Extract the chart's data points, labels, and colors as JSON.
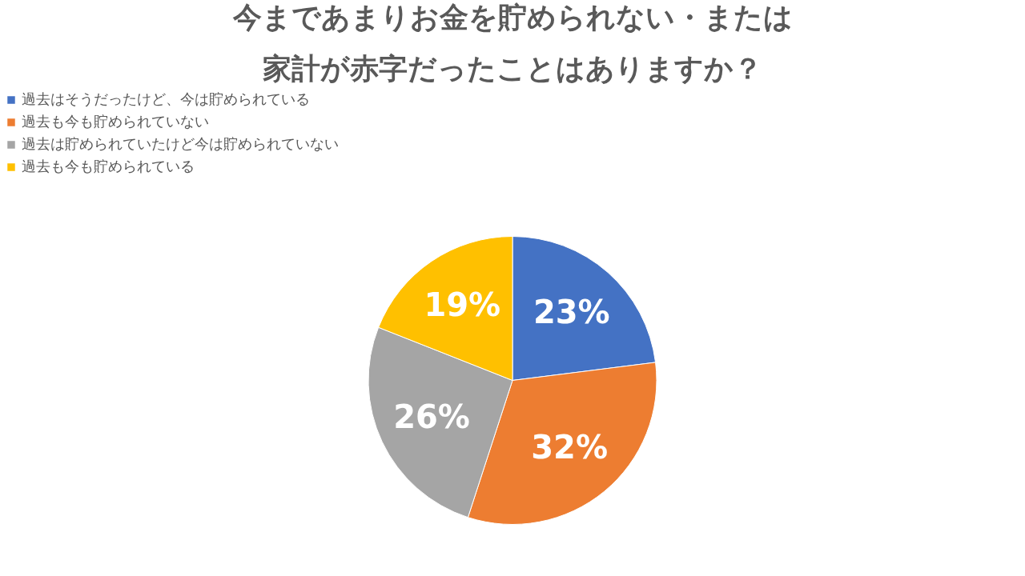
{
  "chart_data": {
    "type": "pie",
    "title": [
      "今まであまりお金を貯められない・または",
      "家計が赤字だったことはありますか？"
    ],
    "categories": [
      "過去はそうだったけど、今は貯められている",
      "過去も今も貯められていない",
      "過去は貯められていたけど今は貯められていない",
      "過去も今も貯められている"
    ],
    "values": [
      23,
      32,
      26,
      19
    ],
    "colors": [
      "#4472c4",
      "#ed7d31",
      "#a5a5a5",
      "#ffc000"
    ],
    "value_labels": [
      "23%",
      "32%",
      "26%",
      "19%"
    ],
    "legend": "top"
  }
}
